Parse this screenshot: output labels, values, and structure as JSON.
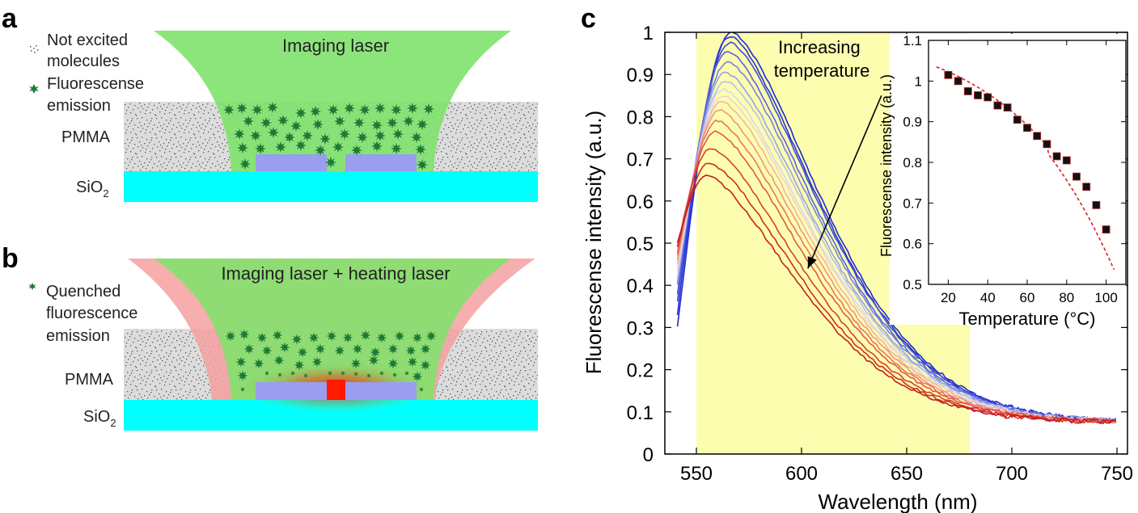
{
  "panel_a": {
    "label": "a",
    "legend": [
      {
        "icon": "noise-dots-icon",
        "lines": [
          "Not excited",
          "molecules"
        ]
      },
      {
        "icon": "star-icon",
        "lines": [
          "Fluorescense",
          "emission"
        ]
      }
    ],
    "laser_label": "Imaging laser",
    "layer_pmma": "PMMA",
    "layer_sio2": "SiO",
    "layer_sio2_sub": "2"
  },
  "panel_b": {
    "label": "b",
    "legend": [
      {
        "icon": "small-star-icon",
        "lines": [
          "Quenched",
          "fluorescence",
          "emission"
        ]
      }
    ],
    "laser_label": "Imaging laser + heating laser",
    "layer_pmma": "PMMA",
    "layer_sio2": "SiO",
    "layer_sio2_sub": "2"
  },
  "colors": {
    "imaging_laser": "#7fe26b",
    "heating_laser": "#f5a0a0",
    "pmma": "#dcdcdc",
    "sio2": "#00ffff",
    "electrode": "#9a9ef0",
    "star": "#1e7a36",
    "highlight": "#fdfdb0",
    "hot": "#ff1a00"
  },
  "chart_data": [
    {
      "type": "line",
      "panel_label": "c",
      "title": "",
      "xlabel": "Wavelength (nm)",
      "ylabel": "Fluorescense intensity (a.u.)",
      "xlim": [
        535,
        755
      ],
      "ylim": [
        0,
        1.0
      ],
      "xticks": [
        550,
        600,
        650,
        700,
        750
      ],
      "yticks": [
        0,
        0.1,
        0.2,
        0.3,
        0.4,
        0.5,
        0.6,
        0.7,
        0.8,
        0.9,
        1
      ],
      "highlight_band_x": [
        550,
        680
      ],
      "annotation": {
        "lines": [
          "Increasing",
          "temperature"
        ],
        "arrow_from": [
          638,
          0.85
        ],
        "arrow_to": [
          603,
          0.44
        ]
      },
      "grid": false,
      "series": [
        {
          "color": "#1f2ad0",
          "peak": 1.0,
          "peak_x": 567,
          "start": 0.3
        },
        {
          "color": "#2433d4",
          "peak": 0.99,
          "peak_x": 566,
          "start": 0.33
        },
        {
          "color": "#3d4cd8",
          "peak": 0.975,
          "peak_x": 566,
          "start": 0.36
        },
        {
          "color": "#5563dc",
          "peak": 0.955,
          "peak_x": 565,
          "start": 0.38
        },
        {
          "color": "#7582e0",
          "peak": 0.93,
          "peak_x": 565,
          "start": 0.4
        },
        {
          "color": "#97a1e6",
          "peak": 0.905,
          "peak_x": 564,
          "start": 0.41
        },
        {
          "color": "#b7bfed",
          "peak": 0.885,
          "peak_x": 564,
          "start": 0.42
        },
        {
          "color": "#d3d8f2",
          "peak": 0.865,
          "peak_x": 563,
          "start": 0.43
        },
        {
          "color": "#f0d2cf",
          "peak": 0.85,
          "peak_x": 563,
          "start": 0.44
        },
        {
          "color": "#f1b2ab",
          "peak": 0.835,
          "peak_x": 562,
          "start": 0.45
        },
        {
          "color": "#ee9289",
          "peak": 0.815,
          "peak_x": 561,
          "start": 0.46
        },
        {
          "color": "#e77369",
          "peak": 0.79,
          "peak_x": 560,
          "start": 0.47
        },
        {
          "color": "#df564d",
          "peak": 0.765,
          "peak_x": 559,
          "start": 0.48
        },
        {
          "color": "#d63c35",
          "peak": 0.725,
          "peak_x": 557,
          "start": 0.49
        },
        {
          "color": "#cc2a26",
          "peak": 0.69,
          "peak_x": 556,
          "start": 0.49
        },
        {
          "color": "#c41e1e",
          "peak": 0.66,
          "peak_x": 555,
          "start": 0.5
        }
      ]
    },
    {
      "type": "scatter",
      "title": "",
      "xlabel": "Temperature (°C)",
      "ylabel": "Fluorescense intensity (a.u.)",
      "xlim": [
        10,
        110
      ],
      "ylim": [
        0.5,
        1.1
      ],
      "xticks": [
        20,
        40,
        60,
        80,
        100
      ],
      "yticks": [
        0.5,
        0.6,
        0.7,
        0.8,
        0.9,
        1,
        1.1
      ],
      "x": [
        20,
        25,
        30,
        35,
        40,
        45,
        50,
        55,
        60,
        65,
        70,
        75,
        80,
        85,
        90,
        95,
        100
      ],
      "y": [
        1.015,
        1.0,
        0.975,
        0.965,
        0.96,
        0.94,
        0.935,
        0.905,
        0.885,
        0.865,
        0.845,
        0.815,
        0.805,
        0.765,
        0.74,
        0.695,
        0.635
      ],
      "fit_color": "#e02020",
      "fit_style": "dashed"
    }
  ]
}
